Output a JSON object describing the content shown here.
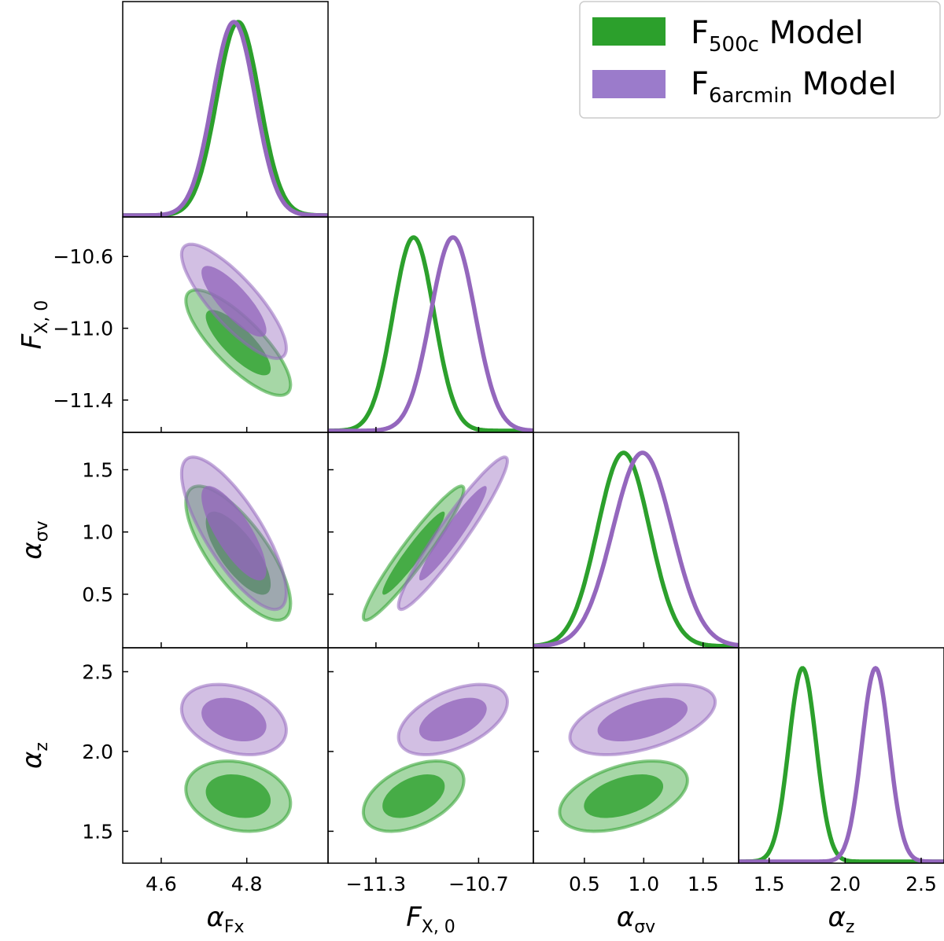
{
  "chart_data": {
    "type": "corner",
    "legend": {
      "position": "top-right",
      "entries": [
        {
          "base": "F",
          "sub": "500c",
          "suffix": " Model"
        },
        {
          "base": "F",
          "sub": "6arcmin",
          "suffix": " Model"
        }
      ]
    },
    "params": [
      {
        "sym": "α",
        "sub": "Fx",
        "range": [
          4.51,
          4.99
        ],
        "ticks": [
          4.6,
          4.8
        ],
        "tick_labels": [
          "4.6",
          "4.8"
        ]
      },
      {
        "sym": "F",
        "sub": "X, 0",
        "range": [
          -11.58,
          -10.38
        ],
        "ticks": [
          -11.4,
          -11.0,
          -10.6
        ],
        "tick_labels": [
          "−11.4",
          "−11.0",
          "−10.6"
        ],
        "x_ticks": [
          -11.3,
          -10.7
        ],
        "x_tick_labels": [
          "−11.3",
          "−10.7"
        ]
      },
      {
        "sym": "α",
        "sub": "σv",
        "range": [
          0.07,
          1.8
        ],
        "ticks": [
          0.5,
          1.0,
          1.5
        ],
        "tick_labels": [
          "0.5",
          "1.0",
          "1.5"
        ]
      },
      {
        "sym": "α",
        "sub": "z",
        "range": [
          1.3,
          2.65
        ],
        "ticks": [
          1.5,
          2.0,
          2.5
        ],
        "tick_labels": [
          "1.5",
          "2.0",
          "2.5"
        ]
      }
    ],
    "series": [
      {
        "name": "F500c Model",
        "color": "#2ca02c",
        "mean": [
          4.78,
          -11.08,
          0.83,
          1.72
        ],
        "sd": [
          0.05,
          0.12,
          0.22,
          0.09
        ],
        "corr": [
          [
            0,
            1,
            -0.8
          ],
          [
            0,
            2,
            -0.75
          ],
          [
            0,
            3,
            -0.2
          ],
          [
            1,
            2,
            0.95
          ],
          [
            1,
            3,
            0.45
          ],
          [
            2,
            3,
            0.45
          ]
        ]
      },
      {
        "name": "F6arcmin Model",
        "color": "#9467bd",
        "mean": [
          4.77,
          -10.85,
          0.99,
          2.2
        ],
        "sd": [
          0.05,
          0.13,
          0.25,
          0.09
        ],
        "corr": [
          [
            0,
            1,
            -0.82
          ],
          [
            0,
            2,
            -0.78
          ],
          [
            0,
            3,
            -0.3
          ],
          [
            1,
            2,
            0.95
          ],
          [
            1,
            3,
            0.5
          ],
          [
            2,
            3,
            0.5
          ]
        ]
      }
    ]
  }
}
